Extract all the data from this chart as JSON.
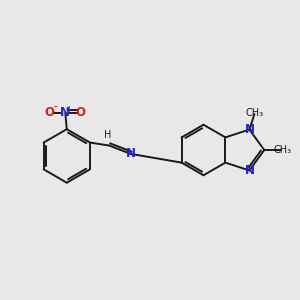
{
  "bg_color": "#e8e8e8",
  "bond_color": "#1a1a1a",
  "n_color": "#2222cc",
  "o_color": "#cc2222",
  "font_size": 8.5,
  "small_font_size": 7.0,
  "line_width": 1.4,
  "fig_size": [
    3.0,
    3.0
  ],
  "dpi": 100,
  "xlim": [
    0,
    10
  ],
  "ylim": [
    1,
    9
  ]
}
